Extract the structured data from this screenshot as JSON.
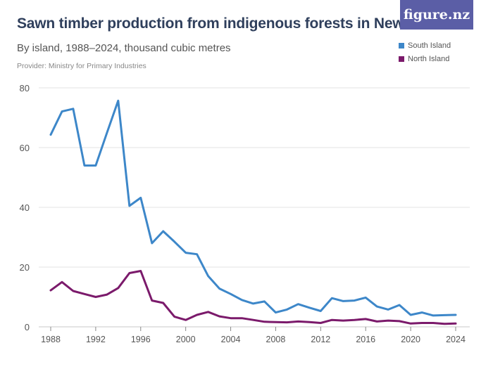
{
  "header": {
    "title": "Sawn timber production from indigenous forests in New Zealand",
    "subtitle": "By island, 1988–2024, thousand cubic metres",
    "provider": "Provider: Ministry for Primary Industries",
    "logo_text": "figure.nz"
  },
  "colors": {
    "south": "#3d87c9",
    "north": "#7b1a6b",
    "grid": "#e3e3e3",
    "logo_bg": "#5b5ea6"
  },
  "chart_data": {
    "type": "line",
    "title": "Sawn timber production from indigenous forests in New Zealand",
    "subtitle": "By island, 1988–2024, thousand cubic metres",
    "xlabel": "",
    "ylabel": "",
    "xlim": [
      1988,
      2024
    ],
    "ylim": [
      0,
      80
    ],
    "yticks": [
      0,
      20,
      40,
      60,
      80
    ],
    "xticks": [
      1988,
      1992,
      1996,
      2000,
      2004,
      2008,
      2012,
      2016,
      2020,
      2024
    ],
    "grid": true,
    "legend_position": "top-right",
    "x": [
      1988,
      1989,
      1990,
      1991,
      1992,
      1993,
      1994,
      1995,
      1996,
      1997,
      1998,
      1999,
      2000,
      2001,
      2002,
      2003,
      2004,
      2005,
      2006,
      2007,
      2008,
      2009,
      2010,
      2011,
      2012,
      2013,
      2014,
      2015,
      2016,
      2017,
      2018,
      2019,
      2020,
      2021,
      2022,
      2023,
      2024
    ],
    "series": [
      {
        "name": "South Island",
        "color": "#3d87c9",
        "values": [
          64.3,
          72.1,
          73.0,
          54.0,
          54.0,
          65.0,
          75.7,
          40.5,
          43.2,
          28.0,
          32.0,
          28.5,
          24.8,
          24.3,
          17.0,
          12.8,
          11.0,
          9.0,
          7.8,
          8.5,
          4.8,
          5.8,
          7.6,
          6.4,
          5.3,
          9.6,
          8.6,
          8.8,
          9.8,
          6.8,
          5.8,
          7.3,
          4.0,
          4.8,
          3.8,
          3.9,
          4.0
        ]
      },
      {
        "name": "North Island",
        "color": "#7b1a6b",
        "values": [
          12.2,
          15.0,
          12.0,
          11.0,
          10.0,
          10.8,
          13.0,
          18.0,
          18.7,
          8.8,
          8.0,
          3.4,
          2.3,
          4.0,
          5.0,
          3.5,
          2.9,
          2.9,
          2.3,
          1.7,
          1.6,
          1.5,
          1.8,
          1.6,
          1.3,
          2.3,
          2.1,
          2.3,
          2.6,
          1.8,
          2.1,
          1.9,
          1.1,
          1.3,
          1.3,
          1.0,
          1.1
        ]
      }
    ]
  }
}
